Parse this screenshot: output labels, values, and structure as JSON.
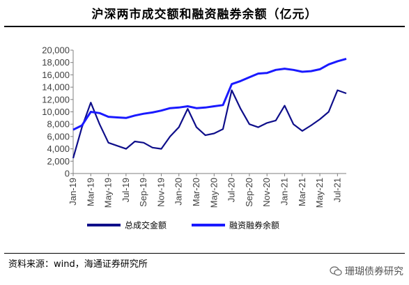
{
  "header": {
    "title": "沪深两市成交额和融资融券余额（亿元）"
  },
  "footer": {
    "source": "资料来源：wind，海通证券研究所",
    "watermark": "珊瑚债券研究"
  },
  "colors": {
    "turnover": "#0e0e8a",
    "margin": "#1a1aff"
  },
  "chart_data": {
    "type": "line",
    "title": "沪深两市成交额和融资融券余额（亿元）",
    "xlabel": "",
    "ylabel": "",
    "ylim": [
      0,
      20000
    ],
    "yticks": [
      "0",
      "2,000",
      "4,000",
      "6,000",
      "8,000",
      "10,000",
      "12,000",
      "14,000",
      "16,000",
      "18,000",
      "20,000"
    ],
    "xticks": [
      "Jan-19",
      "Mar-19",
      "May-19",
      "Jul-19",
      "Sep-19",
      "Nov-19",
      "Jan-20",
      "Mar-20",
      "May-20",
      "Jul-20",
      "Sep-20",
      "Nov-20",
      "Jan-21",
      "Mar-21",
      "May-21",
      "Jul-21"
    ],
    "legend": "bottom",
    "grid": false,
    "x": [
      "Jan-19",
      "Feb-19",
      "Mar-19",
      "Apr-19",
      "May-19",
      "Jun-19",
      "Jul-19",
      "Aug-19",
      "Sep-19",
      "Oct-19",
      "Nov-19",
      "Dec-19",
      "Jan-20",
      "Feb-20",
      "Mar-20",
      "Apr-20",
      "May-20",
      "Jun-20",
      "Jul-20",
      "Aug-20",
      "Sep-20",
      "Oct-20",
      "Nov-20",
      "Dec-20",
      "Jan-21",
      "Feb-21",
      "Mar-21",
      "Apr-21",
      "May-21",
      "Jun-21",
      "Jul-21",
      "Aug-21"
    ],
    "series": [
      {
        "name": "总成交金额",
        "values": [
          2500,
          7500,
          11500,
          8000,
          5000,
          4500,
          4000,
          5200,
          5000,
          4200,
          4000,
          6000,
          7500,
          10500,
          7500,
          6200,
          6500,
          7200,
          13500,
          10500,
          8000,
          7500,
          8200,
          8600,
          11000,
          8000,
          6900,
          7800,
          8800,
          10000,
          13500,
          13000
        ]
      },
      {
        "name": "融资融券余额",
        "values": [
          7100,
          7800,
          10000,
          9800,
          9200,
          9100,
          9000,
          9400,
          9700,
          9900,
          10200,
          10600,
          10700,
          10900,
          10600,
          10700,
          10900,
          11100,
          14500,
          15000,
          15600,
          16200,
          16300,
          16800,
          17000,
          16800,
          16500,
          16600,
          16900,
          17700,
          18200,
          18600
        ]
      }
    ]
  }
}
